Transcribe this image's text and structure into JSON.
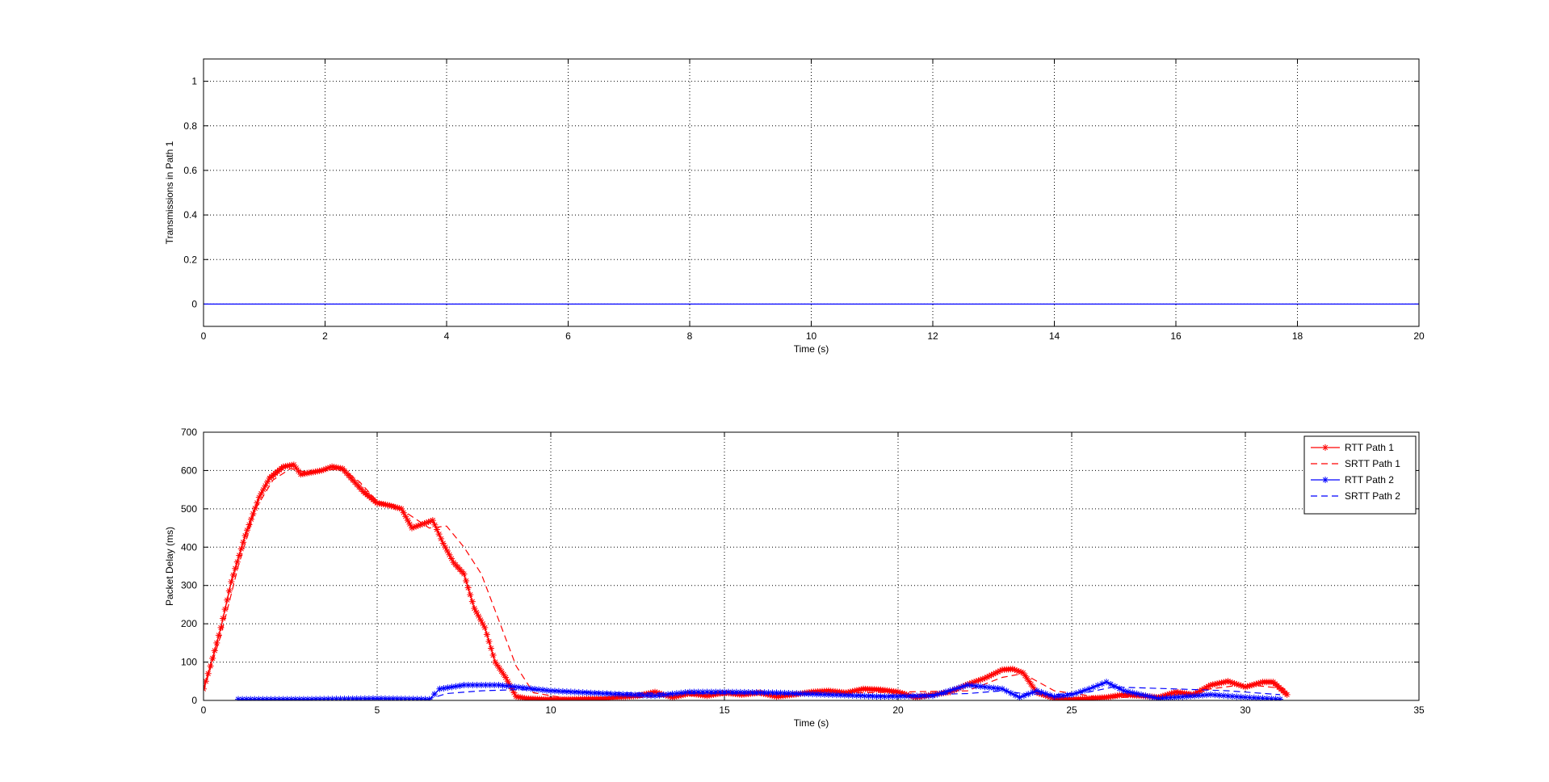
{
  "chart_data": [
    {
      "type": "line",
      "xlabel": "Time (s)",
      "ylabel": "Transmissions in Path 1",
      "xlim": [
        0,
        20
      ],
      "ylim": [
        -0.1,
        1.1
      ],
      "xticks": [
        "0",
        "2",
        "4",
        "6",
        "8",
        "10",
        "12",
        "14",
        "16",
        "18",
        "20"
      ],
      "yticks": [
        "0",
        "0.2",
        "0.4",
        "0.6",
        "0.8",
        "1"
      ],
      "grid": true,
      "series": [
        {
          "color": "#0000ff",
          "style": "solid",
          "x": [
            0,
            20
          ],
          "y": [
            0,
            0
          ]
        }
      ]
    },
    {
      "type": "line",
      "xlabel": "Time (s)",
      "ylabel": "Packet Delay (ms)",
      "xlim": [
        0,
        35
      ],
      "ylim": [
        0,
        700
      ],
      "xticks": [
        "0",
        "5",
        "10",
        "15",
        "20",
        "25",
        "30",
        "35"
      ],
      "yticks": [
        "0",
        "100",
        "200",
        "300",
        "400",
        "500",
        "600",
        "700"
      ],
      "grid": true,
      "legend": "top-right",
      "series": [
        {
          "name": "RTT Path 1",
          "color": "#ff0000",
          "style": "solid",
          "marker": "star",
          "x": [
            0,
            0.2,
            0.5,
            0.8,
            1.2,
            1.6,
            1.9,
            2.3,
            2.6,
            2.8,
            3.1,
            3.4,
            3.7,
            4.0,
            4.3,
            4.6,
            5.0,
            5.3,
            5.7,
            6.0,
            6.3,
            6.6,
            6.9,
            7.2,
            7.5,
            7.8,
            8.1,
            8.4,
            8.7,
            9.0,
            9.3,
            9.8,
            10.5,
            11.5,
            12.5,
            13.0,
            13.5,
            14.0,
            14.5,
            15.0,
            15.5,
            16.0,
            16.5,
            17.0,
            17.5,
            18.0,
            18.5,
            19.0,
            19.5,
            20.0,
            20.5,
            21.0,
            21.5,
            22.0,
            22.5,
            23.0,
            23.3,
            23.6,
            24.0,
            24.5,
            25.0,
            25.5,
            26.0,
            26.5,
            27.0,
            27.5,
            28.0,
            28.5,
            29.0,
            29.5,
            30.0,
            30.5,
            30.8,
            31.2
          ],
          "y": [
            30,
            90,
            190,
            310,
            430,
            530,
            580,
            610,
            615,
            590,
            595,
            600,
            610,
            605,
            575,
            545,
            515,
            510,
            500,
            450,
            460,
            470,
            410,
            360,
            330,
            240,
            190,
            100,
            60,
            10,
            5,
            3,
            3,
            5,
            12,
            22,
            8,
            18,
            12,
            20,
            15,
            20,
            10,
            15,
            22,
            25,
            20,
            30,
            28,
            22,
            8,
            15,
            22,
            42,
            58,
            80,
            82,
            72,
            20,
            5,
            3,
            5,
            8,
            15,
            12,
            8,
            22,
            15,
            40,
            50,
            35,
            48,
            48,
            15
          ]
        },
        {
          "name": "SRTT Path 1",
          "color": "#ff0000",
          "style": "dashed",
          "x": [
            0,
            0.5,
            1.0,
            1.5,
            2.0,
            2.5,
            3.0,
            3.5,
            4.0,
            4.5,
            5.0,
            5.5,
            6.0,
            6.5,
            7.0,
            7.5,
            8.0,
            8.5,
            9.0,
            9.5,
            10.5,
            12.0,
            14.0,
            16.0,
            18.0,
            20.0,
            22.0,
            23.0,
            23.6,
            24.5,
            26.0,
            28.0,
            29.0,
            30.0,
            31.2
          ],
          "y": [
            25,
            170,
            350,
            500,
            575,
            605,
            595,
            600,
            605,
            570,
            520,
            510,
            480,
            450,
            455,
            400,
            330,
            210,
            90,
            20,
            5,
            6,
            12,
            15,
            18,
            22,
            25,
            60,
            70,
            25,
            6,
            14,
            30,
            42,
            30
          ]
        },
        {
          "name": "RTT Path 2",
          "color": "#0000ff",
          "style": "solid",
          "marker": "star",
          "x": [
            1.0,
            3.0,
            5.0,
            6.5,
            6.8,
            7.5,
            8.5,
            10.0,
            11.5,
            13.0,
            14.0,
            15.0,
            16.5,
            18.0,
            19.5,
            21.0,
            22.0,
            23.0,
            23.5,
            24.0,
            24.5,
            25.0,
            25.5,
            26.0,
            26.5,
            27.5,
            29.0,
            30.0,
            31.0
          ],
          "y": [
            3,
            3,
            5,
            3,
            30,
            40,
            40,
            25,
            18,
            12,
            22,
            22,
            20,
            15,
            10,
            12,
            40,
            30,
            8,
            25,
            10,
            15,
            30,
            48,
            25,
            5,
            15,
            8,
            3
          ]
        },
        {
          "name": "SRTT Path 2",
          "color": "#0000ff",
          "style": "dashed",
          "x": [
            1.0,
            6.5,
            7.0,
            8.0,
            9.0,
            10.0,
            12.0,
            14.0,
            16.0,
            18.0,
            20.0,
            22.0,
            23.0,
            23.6,
            24.5,
            25.5,
            26.2,
            28.0,
            29.5,
            31.0
          ],
          "y": [
            3,
            4,
            18,
            25,
            28,
            26,
            20,
            18,
            17,
            15,
            13,
            18,
            25,
            18,
            15,
            22,
            35,
            30,
            25,
            15
          ]
        }
      ]
    }
  ]
}
